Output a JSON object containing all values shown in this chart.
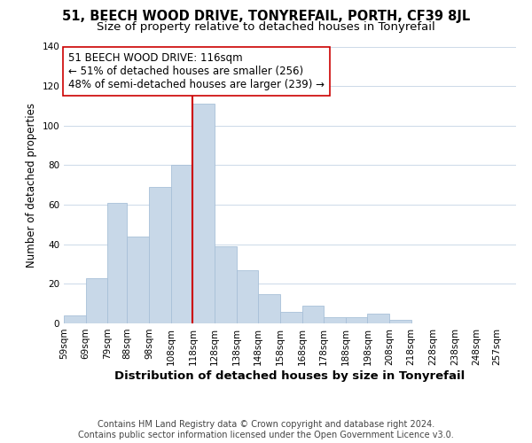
{
  "title": "51, BEECH WOOD DRIVE, TONYREFAIL, PORTH, CF39 8JL",
  "subtitle": "Size of property relative to detached houses in Tonyrefail",
  "xlabel": "Distribution of detached houses by size in Tonyrefail",
  "ylabel": "Number of detached properties",
  "bar_color": "#c8d8e8",
  "bar_edgecolor": "#a8c0d8",
  "bar_left_edges": [
    59,
    69,
    79,
    88,
    98,
    108,
    118,
    128,
    138,
    148,
    158,
    168,
    178,
    188,
    198,
    208,
    218,
    228,
    238,
    248
  ],
  "bar_widths": [
    10,
    10,
    9,
    10,
    10,
    10,
    10,
    10,
    10,
    10,
    10,
    10,
    10,
    10,
    10,
    10,
    10,
    10,
    10,
    9
  ],
  "bar_heights": [
    4,
    23,
    61,
    44,
    69,
    80,
    111,
    39,
    27,
    15,
    6,
    9,
    3,
    3,
    5,
    2,
    0,
    0,
    0,
    0
  ],
  "vline_x": 118,
  "vline_color": "#cc0000",
  "annotation_text": "51 BEECH WOOD DRIVE: 116sqm\n← 51% of detached houses are smaller (256)\n48% of semi-detached houses are larger (239) →",
  "annotation_box_color": "#ffffff",
  "annotation_box_edgecolor": "#cc0000",
  "xtick_labels": [
    "59sqm",
    "69sqm",
    "79sqm",
    "88sqm",
    "98sqm",
    "108sqm",
    "118sqm",
    "128sqm",
    "138sqm",
    "148sqm",
    "158sqm",
    "168sqm",
    "178sqm",
    "188sqm",
    "198sqm",
    "208sqm",
    "218sqm",
    "228sqm",
    "238sqm",
    "248sqm",
    "257sqm"
  ],
  "xtick_positions": [
    59,
    69,
    79,
    88,
    98,
    108,
    118,
    128,
    138,
    148,
    158,
    168,
    178,
    188,
    198,
    208,
    218,
    228,
    238,
    248,
    257
  ],
  "ylim": [
    0,
    140
  ],
  "xlim": [
    59,
    266
  ],
  "yticks": [
    0,
    20,
    40,
    60,
    80,
    100,
    120,
    140
  ],
  "footer_text": "Contains HM Land Registry data © Crown copyright and database right 2024.\nContains public sector information licensed under the Open Government Licence v3.0.",
  "background_color": "#ffffff",
  "grid_color": "#ccd9e8",
  "title_fontsize": 10.5,
  "subtitle_fontsize": 9.5,
  "xlabel_fontsize": 9.5,
  "ylabel_fontsize": 8.5,
  "tick_fontsize": 7.5,
  "annotation_fontsize": 8.5,
  "footer_fontsize": 7
}
